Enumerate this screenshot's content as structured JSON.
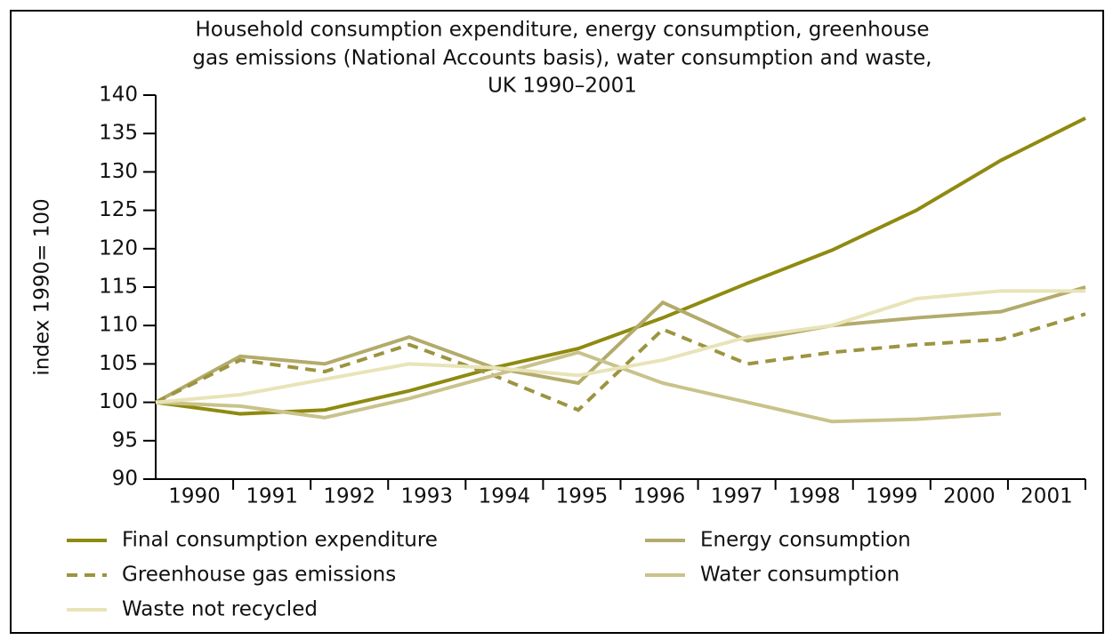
{
  "chart_data": {
    "type": "line",
    "title": [
      "Household consumption expenditure, energy consumption, greenhouse",
      "gas emissions (National Accounts basis), water consumption and waste,",
      "UK 1990–2001"
    ],
    "y_label": "index 1990= 100",
    "x": [
      1990,
      1991,
      1992,
      1993,
      1994,
      1995,
      1996,
      1997,
      1998,
      1999,
      2000,
      2001
    ],
    "xlim": [
      1990,
      2001
    ],
    "ylim": [
      90,
      140
    ],
    "yticks": [
      90,
      95,
      100,
      105,
      110,
      115,
      120,
      125,
      130,
      135,
      140
    ],
    "series": [
      {
        "name": "Final consumption expenditure",
        "color": "#8f8a10",
        "style": "solid",
        "values": [
          100,
          98.5,
          99,
          101.5,
          104.5,
          107,
          111,
          115.5,
          119.8,
          125,
          131.5,
          137
        ]
      },
      {
        "name": "Energy consumption",
        "color": "#b3ab6b",
        "style": "solid",
        "values": [
          100,
          106,
          105,
          108.5,
          104.5,
          102.5,
          113,
          108,
          110,
          111,
          111.8,
          115
        ]
      },
      {
        "name": "Greenhouse gas emissions",
        "color": "#9c9440",
        "style": "dashed",
        "values": [
          100,
          105.5,
          104,
          107.5,
          103.5,
          99,
          109.5,
          105,
          106.5,
          107.5,
          108.2,
          111.5
        ]
      },
      {
        "name": "Water consumption",
        "color": "#c9c28a",
        "style": "solid",
        "values": [
          100,
          99.5,
          98,
          100.5,
          103.5,
          106.5,
          102.5,
          100,
          97.5,
          97.8,
          98.5,
          null
        ]
      },
      {
        "name": "Waste not recycled",
        "color": "#e8e4b8",
        "style": "solid",
        "values": [
          100,
          101,
          103,
          105,
          104.5,
          103.5,
          105.5,
          108.5,
          110,
          113.5,
          114.5,
          114.5
        ]
      }
    ]
  }
}
